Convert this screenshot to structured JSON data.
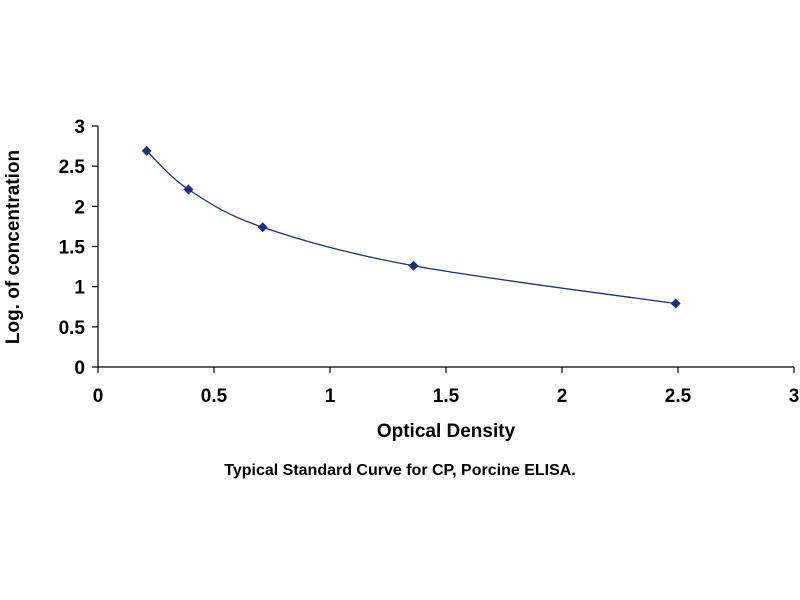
{
  "caption": "Typical Standard Curve for CP, Porcine ELISA.",
  "colors": {
    "series": "#1f2f7a",
    "axis": "#000000"
  },
  "chart_data": {
    "type": "scatter",
    "title": "",
    "xlabel": "Optical Density",
    "ylabel": "Log. of concentration",
    "xlim": [
      0,
      3
    ],
    "ylim": [
      0,
      3
    ],
    "x_ticks": [
      "0",
      "0.5",
      "1",
      "1.5",
      "2",
      "2.5",
      "3"
    ],
    "y_ticks": [
      "0",
      "0.5",
      "1",
      "1.5",
      "2",
      "2.5",
      "3"
    ],
    "grid": false,
    "legend": "none",
    "marker": "diamond",
    "smoothed_line": true,
    "series": [
      {
        "x": [
          0.21,
          0.39,
          0.71,
          1.36,
          2.49
        ],
        "y": [
          2.69,
          2.21,
          1.74,
          1.26,
          0.79
        ]
      }
    ]
  }
}
